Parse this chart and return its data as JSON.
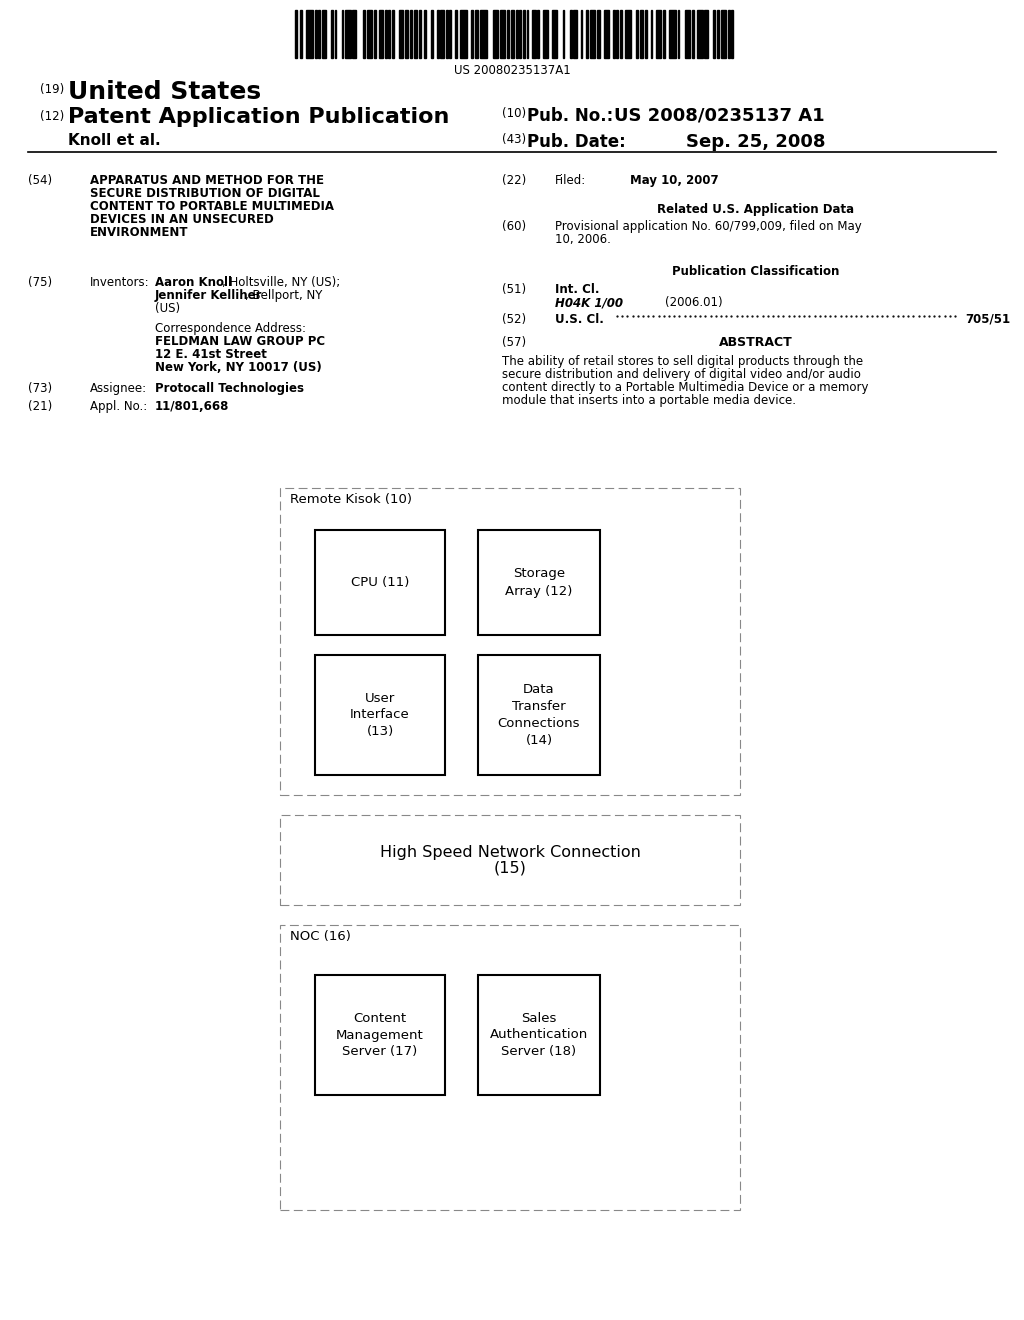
{
  "background_color": "#ffffff",
  "barcode_text": "US 20080235137A1",
  "field_54_title_lines": [
    "APPARATUS AND METHOD FOR THE",
    "SECURE DISTRIBUTION OF DIGITAL",
    "CONTENT TO PORTABLE MULTIMEDIA",
    "DEVICES IN AN UNSECURED",
    "ENVIRONMENT"
  ],
  "field_75_value_bold": "Aaron Knoll",
  "field_75_value_rest1": ", Holtsville, NY (US);",
  "field_75_value_bold2": "Jennifer Kelliher",
  "field_75_value_rest2": ", Bellport, NY",
  "field_75_value_rest3": "(US)",
  "corr_address_label": "Correspondence Address:",
  "corr_address_line1": "FELDMAN LAW GROUP PC",
  "corr_address_line2": "12 E. 41st Street",
  "corr_address_line3": "New York, NY 10017 (US)",
  "field_73_value": "Protocall Technologies",
  "field_21_value": "11/801,668",
  "field_22_value": "May 10, 2007",
  "related_header": "Related U.S. Application Data",
  "field_60_value_line1": "Provisional application No. 60/799,009, filed on May",
  "field_60_value_line2": "10, 2006.",
  "pub_class_header": "Publication Classification",
  "field_51_class": "H04K 1/00",
  "field_51_year": "(2006.01)",
  "field_52_value": "705/51",
  "field_57_header": "ABSTRACT",
  "field_57_text_line1": "The ability of retail stores to sell digital products through the",
  "field_57_text_line2": "secure distribution and delivery of digital video and/or audio",
  "field_57_text_line3": "content directly to a Portable Multimedia Device or a memory",
  "field_57_text_line4": "module that inserts into a portable media device.",
  "box1_label": "Remote Kisok (10)",
  "box1_sub1_label": "CPU (11)",
  "box1_sub2_label": "Storage\nArray (12)",
  "box1_sub3_label": "User\nInterface\n(13)",
  "box1_sub4_label": "Data\nTransfer\nConnections\n(14)",
  "box2_line1": "High Speed Network Connection",
  "box2_line2": "(15)",
  "box3_label": "NOC (16)",
  "box3_sub1_label": "Content\nManagement\nServer (17)",
  "box3_sub2_label": "Sales\nAuthentication\nServer (18)"
}
